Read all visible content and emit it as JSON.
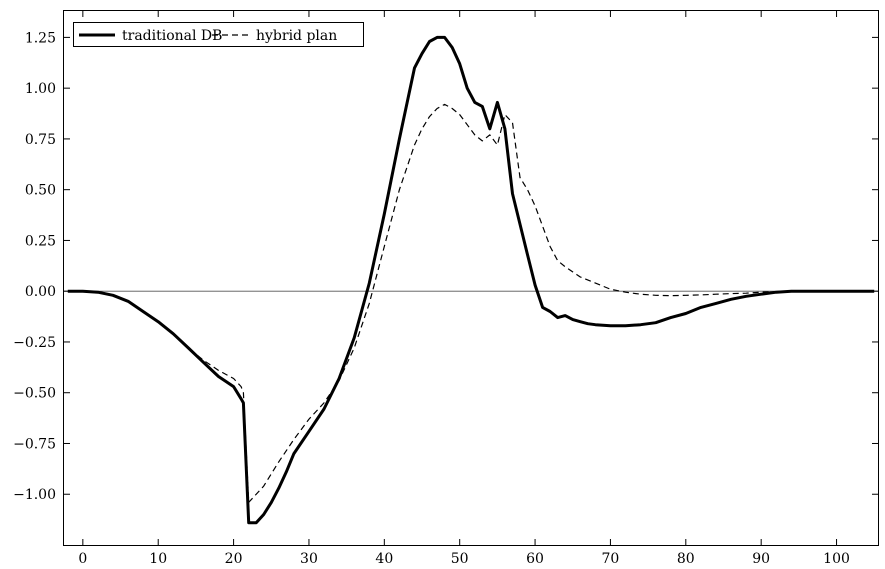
{
  "chart_data": {
    "type": "line",
    "title": "",
    "xlabel": "",
    "ylabel": "",
    "xlim": [
      -2.5,
      105.5
    ],
    "ylim": [
      -1.25,
      1.38
    ],
    "x_ticks": [
      0,
      10,
      20,
      30,
      40,
      50,
      60,
      70,
      80,
      90,
      100
    ],
    "x_tick_labels": [
      "0",
      "10",
      "20",
      "30",
      "40",
      "50",
      "60",
      "70",
      "80",
      "90",
      "100"
    ],
    "y_ticks": [
      1.25,
      1.0,
      0.75,
      0.5,
      0.25,
      0.0,
      -0.25,
      -0.5,
      -0.75,
      -1.0
    ],
    "y_tick_labels": [
      "1.25",
      "1.00",
      "0.75",
      "0.50",
      "0.25",
      "0.00",
      "−0.25",
      "−0.50",
      "−0.75",
      "−1.00"
    ],
    "zero_line": true,
    "grid": false,
    "legend": {
      "position": "top-left",
      "boxed": true
    },
    "series": [
      {
        "name": "traditional DB",
        "style": "solid",
        "color": "#000000",
        "x": [
          -2,
          0,
          2,
          4,
          6,
          8,
          10,
          12,
          14,
          16,
          18,
          20,
          21,
          21.3,
          22,
          23,
          24,
          25,
          26,
          27,
          28,
          30,
          32,
          34,
          36,
          38,
          40,
          42,
          44,
          45,
          46,
          47,
          48,
          49,
          50,
          51,
          52,
          53,
          54,
          55,
          56,
          57,
          58,
          59,
          60,
          61,
          62,
          63,
          64,
          65,
          66,
          67,
          68,
          70,
          72,
          74,
          76,
          78,
          80,
          82,
          84,
          86,
          88,
          90,
          92,
          94,
          96,
          98,
          100,
          102,
          105
        ],
        "y": [
          0.0,
          0.0,
          -0.005,
          -0.02,
          -0.05,
          -0.1,
          -0.15,
          -0.21,
          -0.28,
          -0.35,
          -0.42,
          -0.47,
          -0.53,
          -0.55,
          -1.14,
          -1.14,
          -1.1,
          -1.04,
          -0.97,
          -0.89,
          -0.8,
          -0.69,
          -0.58,
          -0.43,
          -0.23,
          0.04,
          0.38,
          0.75,
          1.1,
          1.17,
          1.23,
          1.25,
          1.25,
          1.2,
          1.12,
          1.0,
          0.93,
          0.91,
          0.8,
          0.93,
          0.8,
          0.48,
          0.33,
          0.18,
          0.03,
          -0.08,
          -0.1,
          -0.13,
          -0.12,
          -0.14,
          -0.15,
          -0.16,
          -0.165,
          -0.17,
          -0.17,
          -0.165,
          -0.155,
          -0.13,
          -0.11,
          -0.08,
          -0.06,
          -0.04,
          -0.025,
          -0.015,
          -0.005,
          0.0,
          0.0,
          0.0,
          0.0,
          0.0,
          0.0
        ]
      },
      {
        "name": "hybrid plan",
        "style": "dashed",
        "color": "#000000",
        "x": [
          -2,
          0,
          2,
          4,
          6,
          8,
          10,
          12,
          14,
          16,
          18,
          20,
          21,
          21.3,
          22,
          24,
          26,
          28,
          30,
          32,
          34,
          36,
          38,
          40,
          42,
          44,
          45,
          46,
          47,
          48,
          49,
          50,
          51,
          52,
          53,
          54,
          55,
          56,
          57,
          58,
          59,
          60,
          61,
          62,
          63,
          64,
          66,
          68,
          70,
          72,
          74,
          76,
          78,
          80,
          82,
          84,
          86,
          88,
          90,
          92,
          94,
          96,
          98,
          100,
          102,
          105
        ],
        "y": [
          0.0,
          0.0,
          -0.005,
          -0.02,
          -0.05,
          -0.1,
          -0.15,
          -0.21,
          -0.28,
          -0.34,
          -0.39,
          -0.43,
          -0.47,
          -0.5,
          -1.04,
          -0.96,
          -0.84,
          -0.73,
          -0.63,
          -0.55,
          -0.44,
          -0.28,
          -0.06,
          0.22,
          0.5,
          0.72,
          0.8,
          0.86,
          0.9,
          0.92,
          0.9,
          0.87,
          0.82,
          0.77,
          0.74,
          0.77,
          0.72,
          0.87,
          0.83,
          0.56,
          0.5,
          0.42,
          0.32,
          0.22,
          0.15,
          0.12,
          0.07,
          0.04,
          0.01,
          -0.005,
          -0.015,
          -0.02,
          -0.022,
          -0.02,
          -0.018,
          -0.015,
          -0.012,
          -0.01,
          -0.005,
          -0.002,
          0.0,
          0.0,
          0.0,
          0.0,
          0.0,
          0.0
        ]
      }
    ]
  }
}
